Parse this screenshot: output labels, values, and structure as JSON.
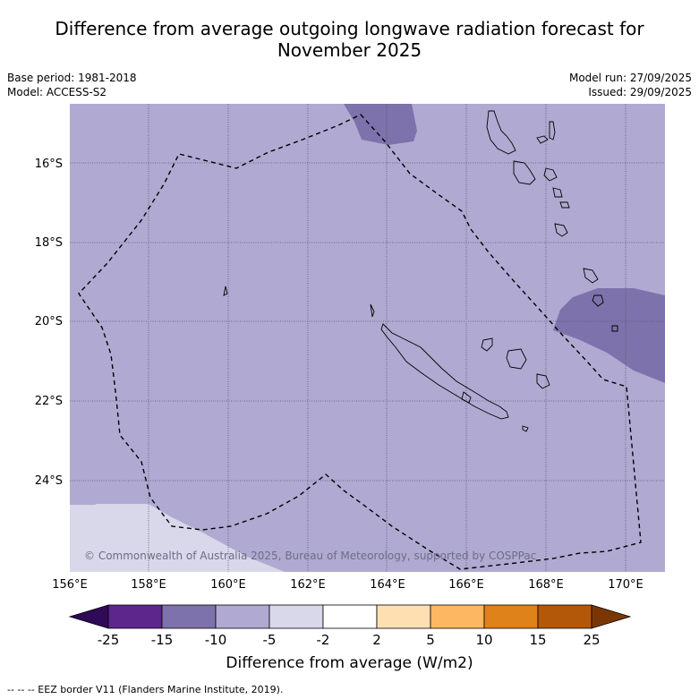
{
  "header": {
    "title_line1": "Difference from average outgoing longwave radiation forecast for",
    "title_line2": "November 2025",
    "base_period": "Base period: 1981-2018",
    "model": "Model: ACCESS-S2",
    "model_run": "Model run: 27/09/2025",
    "issued": "Issued: 29/09/2025"
  },
  "map": {
    "copyright": "© Commonwealth of Australia 2025, Bureau of Meteorology, supported by COSPPac",
    "lat_ticks": [
      "16°S",
      "18°S",
      "20°S",
      "22°S",
      "24°S"
    ],
    "lon_ticks": [
      "156°E",
      "158°E",
      "160°E",
      "162°E",
      "164°E",
      "166°E",
      "168°E",
      "170°E"
    ],
    "extent": {
      "lon_min": 156,
      "lon_max": 171,
      "lat_min": -26.3,
      "lat_max": -14.5
    },
    "colors": {
      "band_-10_-5": "#b0aad2",
      "band_-15_-10": "#7e72ac",
      "band_-5_-2": "#d8d8ea"
    }
  },
  "colorbar": {
    "labels": [
      "-25",
      "-15",
      "-10",
      "-5",
      "-2",
      "2",
      "5",
      "10",
      "15",
      "25"
    ],
    "colors": [
      "#2f0a57",
      "#5d268c",
      "#7e72ac",
      "#b0aad2",
      "#d8d8ea",
      "#ffffff",
      "#fedfb2",
      "#fdb762",
      "#e0821a",
      "#b35808",
      "#7b3703"
    ],
    "title": "Difference from average (W/m2)"
  },
  "footer": {
    "note": "--  --  -- EEZ border V11 (Flanders Marine Institute, 2019)."
  }
}
